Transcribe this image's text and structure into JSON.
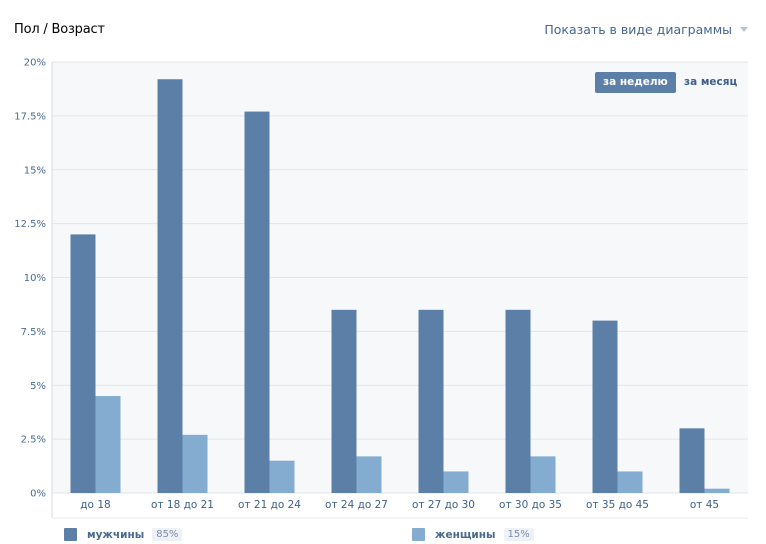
{
  "header": {
    "title": "Пол / Возраст",
    "view_select_label": "Показать в виде диаграммы"
  },
  "period_toggle": {
    "week_label": "за неделю",
    "month_label": "за месяц",
    "active": "week"
  },
  "legend": [
    {
      "label": "мужчины",
      "percent": "85%"
    },
    {
      "label": "женщины",
      "percent": "15%"
    }
  ],
  "colors": {
    "men": "#5b7fa6",
    "women": "#84acd0",
    "plot_background": "#f7f8fa",
    "grid": "#e2e6eb"
  },
  "chart_data": {
    "type": "bar",
    "categories": [
      "до 18",
      "от 18 до 21",
      "от 21 до 24",
      "от 24 до 27",
      "от 27 до 30",
      "от 30 до 35",
      "от 35 до 45",
      "от 45"
    ],
    "series": [
      {
        "name": "мужчины",
        "values": [
          12.0,
          19.2,
          17.7,
          8.5,
          8.5,
          8.5,
          8.0,
          3.0
        ]
      },
      {
        "name": "женщины",
        "values": [
          4.5,
          2.7,
          1.5,
          1.7,
          1.0,
          1.7,
          1.0,
          0.2
        ]
      }
    ],
    "yticks": [
      "0%",
      "2.5%",
      "5%",
      "7.5%",
      "10%",
      "12.5%",
      "15%",
      "17.5%",
      "20%"
    ],
    "ylim": [
      0,
      20
    ],
    "grid": true,
    "legend_position": "bottom"
  }
}
